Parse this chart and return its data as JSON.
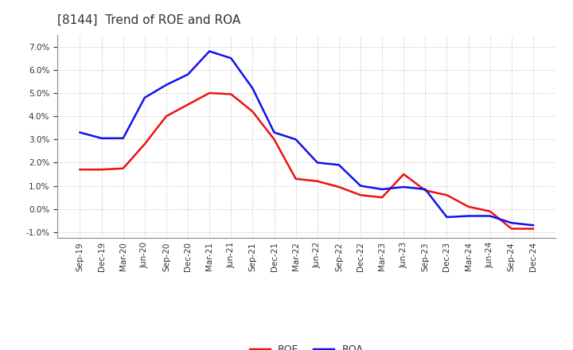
{
  "title": "[8144]  Trend of ROE and ROA",
  "x_labels": [
    "Sep-19",
    "Dec-19",
    "Mar-20",
    "Jun-20",
    "Sep-20",
    "Dec-20",
    "Mar-21",
    "Jun-21",
    "Sep-21",
    "Dec-21",
    "Mar-22",
    "Jun-22",
    "Sep-22",
    "Dec-22",
    "Mar-23",
    "Jun-23",
    "Sep-23",
    "Dec-23",
    "Mar-24",
    "Jun-24",
    "Sep-24",
    "Dec-24"
  ],
  "roe": [
    1.7,
    1.7,
    1.75,
    2.8,
    4.0,
    4.5,
    5.0,
    4.95,
    4.2,
    3.0,
    1.3,
    1.2,
    0.95,
    0.6,
    0.5,
    1.5,
    0.8,
    0.6,
    0.1,
    -0.1,
    -0.85,
    -0.85
  ],
  "roa": [
    3.3,
    3.05,
    3.05,
    4.8,
    5.35,
    5.8,
    6.8,
    6.5,
    5.2,
    3.3,
    3.0,
    2.0,
    1.9,
    1.0,
    0.85,
    0.95,
    0.85,
    -0.35,
    -0.3,
    -0.3,
    -0.6,
    -0.7
  ],
  "roe_color": "#ee1111",
  "roa_color": "#1111ee",
  "background_color": "#ffffff",
  "plot_bg_color": "#ffffff",
  "grid_color": "#bbbbbb",
  "ylim": [
    -1.25,
    7.5
  ],
  "yticks": [
    -1.0,
    0.0,
    1.0,
    2.0,
    3.0,
    4.0,
    5.0,
    6.0,
    7.0
  ],
  "line_width": 1.8,
  "title_fontsize": 11,
  "tick_fontsize": 7.5,
  "legend_fontsize": 9,
  "title_color": "#333333",
  "tick_color": "#333333"
}
